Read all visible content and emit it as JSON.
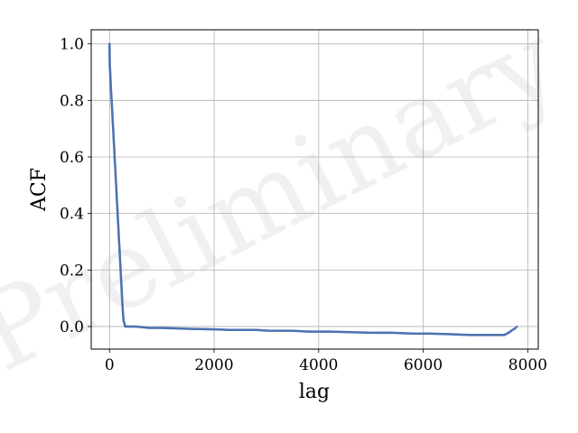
{
  "chart_data": {
    "type": "scatter",
    "title": "",
    "xlabel": "lag",
    "ylabel": "ACF",
    "xlim": [
      -350,
      8200
    ],
    "ylim": [
      -0.08,
      1.05
    ],
    "xticks": [
      0,
      2000,
      4000,
      6000,
      8000
    ],
    "yticks": [
      0.0,
      0.2,
      0.4,
      0.6,
      0.8,
      1.0
    ],
    "xtick_labels": [
      "0",
      "2000",
      "4000",
      "6000",
      "8000"
    ],
    "ytick_labels": [
      "0.0",
      "0.2",
      "0.4",
      "0.6",
      "0.8",
      "1.0"
    ],
    "grid": true,
    "watermark": "Preliminary",
    "marker_color": "#4c72b0",
    "series": [
      {
        "x": [
          0,
          5,
          10,
          15,
          20,
          25,
          30,
          40,
          50,
          60,
          70,
          80,
          90,
          100,
          110,
          120,
          130,
          140,
          150,
          160,
          170,
          180,
          190,
          200,
          210,
          220,
          230,
          240,
          250,
          260,
          270,
          300,
          500,
          760,
          1000,
          1500,
          2000,
          2300,
          2800,
          3050,
          3500,
          3800,
          4200,
          4600,
          5000,
          5400,
          5800,
          6100,
          6500,
          6900,
          7200,
          7550,
          7650,
          7700,
          7760,
          7790
        ],
        "y": [
          1.0,
          0.92,
          0.91,
          0.89,
          0.87,
          0.85,
          0.83,
          0.8,
          0.77,
          0.73,
          0.7,
          0.66,
          0.63,
          0.59,
          0.56,
          0.52,
          0.49,
          0.45,
          0.42,
          0.38,
          0.35,
          0.31,
          0.28,
          0.24,
          0.21,
          0.17,
          0.14,
          0.1,
          0.07,
          0.04,
          0.02,
          0.0,
          0.0,
          -0.005,
          -0.005,
          -0.008,
          -0.01,
          -0.012,
          -0.012,
          -0.015,
          -0.015,
          -0.018,
          -0.018,
          -0.02,
          -0.022,
          -0.022,
          -0.025,
          -0.025,
          -0.027,
          -0.03,
          -0.03,
          -0.03,
          -0.02,
          -0.013,
          -0.006,
          -0.001
        ]
      }
    ]
  }
}
